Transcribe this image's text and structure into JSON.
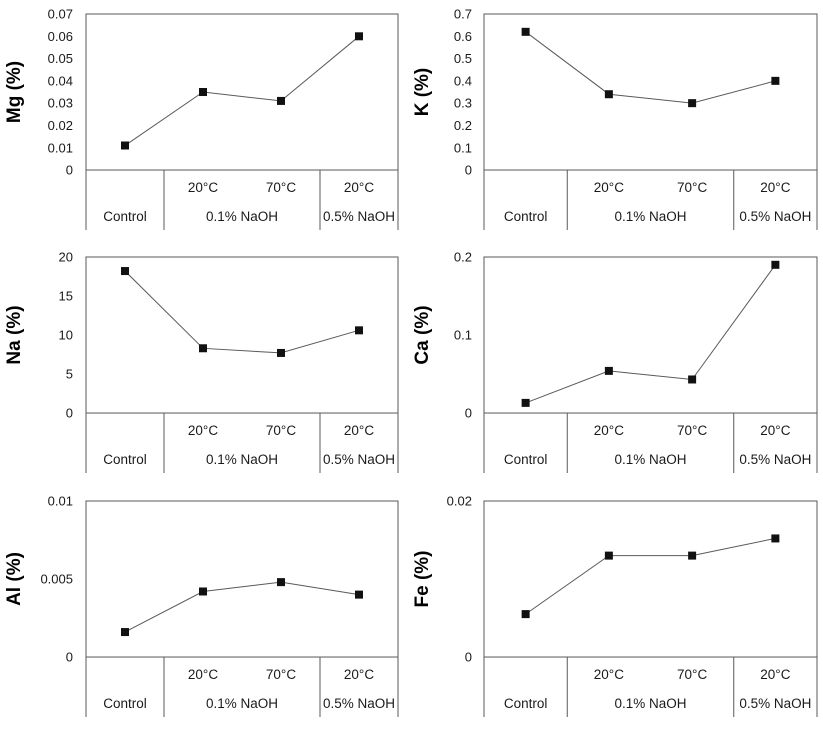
{
  "style": {
    "background": "#ffffff",
    "line_color": "#595959",
    "axis_color": "#595959",
    "marker_color": "#111111",
    "text_color": "#1a1a1a",
    "marker_shape": "square"
  },
  "x_axis": {
    "temp_labels": [
      "",
      "20°C",
      "70°C",
      "20°C"
    ],
    "groups": [
      {
        "label": "Control",
        "start": 0,
        "span": 1
      },
      {
        "label": "0.1% NaOH",
        "start": 1,
        "span": 2
      },
      {
        "label": "0.5% NaOH",
        "start": 3,
        "span": 1
      }
    ],
    "categories_full": [
      "Control",
      "0.1% NaOH 20°C",
      "0.1% NaOH 70°C",
      "0.5% NaOH 20°C"
    ]
  },
  "hints": {
    "grid": false,
    "legend": false,
    "layout": "2 columns x 3 rows"
  },
  "chart_data": [
    {
      "type": "line",
      "title": "Mg (%)",
      "ylabel": "Mg (%)",
      "ylim": [
        0,
        0.07
      ],
      "yticks": [
        "0",
        "0.01",
        "0.02",
        "0.03",
        "0.04",
        "0.05",
        "0.06",
        "0.07"
      ],
      "values": [
        0.011,
        0.035,
        0.031,
        0.06
      ]
    },
    {
      "type": "line",
      "title": "K (%)",
      "ylabel": "K (%)",
      "ylim": [
        0,
        0.7
      ],
      "yticks": [
        "0",
        "0.1",
        "0.2",
        "0.3",
        "0.4",
        "0.5",
        "0.6",
        "0.7"
      ],
      "values": [
        0.62,
        0.34,
        0.3,
        0.4
      ]
    },
    {
      "type": "line",
      "title": "Na (%)",
      "ylabel": "Na (%)",
      "ylim": [
        0,
        20
      ],
      "yticks": [
        "0",
        "5",
        "10",
        "15",
        "20"
      ],
      "values": [
        18.2,
        8.3,
        7.7,
        10.6
      ]
    },
    {
      "type": "line",
      "title": "Ca (%)",
      "ylabel": "Ca (%)",
      "ylim": [
        0,
        0.2
      ],
      "yticks": [
        "0",
        "0.1",
        "0.2"
      ],
      "values": [
        0.013,
        0.054,
        0.043,
        0.19
      ]
    },
    {
      "type": "line",
      "title": "Al (%)",
      "ylabel": "Al (%)",
      "ylim": [
        0,
        0.01
      ],
      "yticks": [
        "0",
        "0.005",
        "0.01"
      ],
      "values": [
        0.0016,
        0.0042,
        0.0048,
        0.004
      ]
    },
    {
      "type": "line",
      "title": "Fe (%)",
      "ylabel": "Fe (%)",
      "ylim": [
        0,
        0.02
      ],
      "yticks": [
        "0",
        "0.02"
      ],
      "values": [
        0.0055,
        0.013,
        0.013,
        0.0152
      ]
    }
  ]
}
